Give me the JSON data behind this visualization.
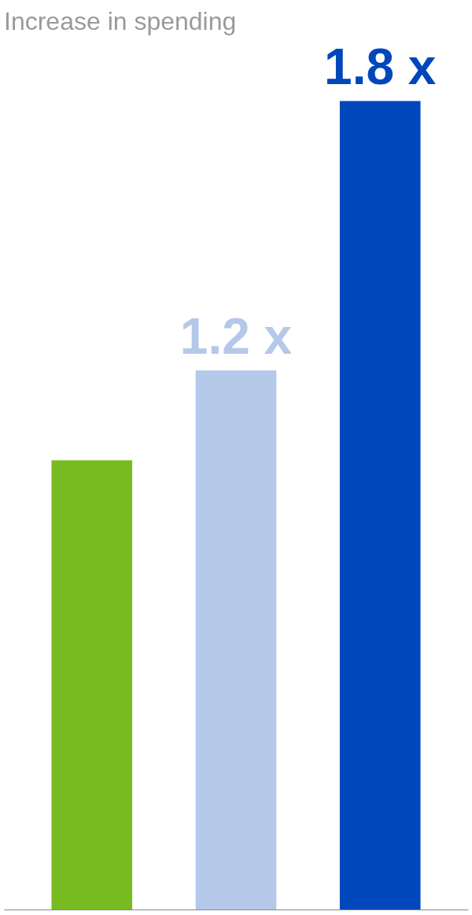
{
  "chart_data": {
    "type": "bar",
    "title": "Increase in spending",
    "categories": [
      null,
      null,
      null
    ],
    "values": [
      1.0,
      1.2,
      1.8
    ],
    "colors": [
      "#78bb20",
      "#b4c8ea",
      "#0047bb"
    ],
    "value_labels": [
      null,
      "1.2 x",
      "1.8 x"
    ]
  }
}
